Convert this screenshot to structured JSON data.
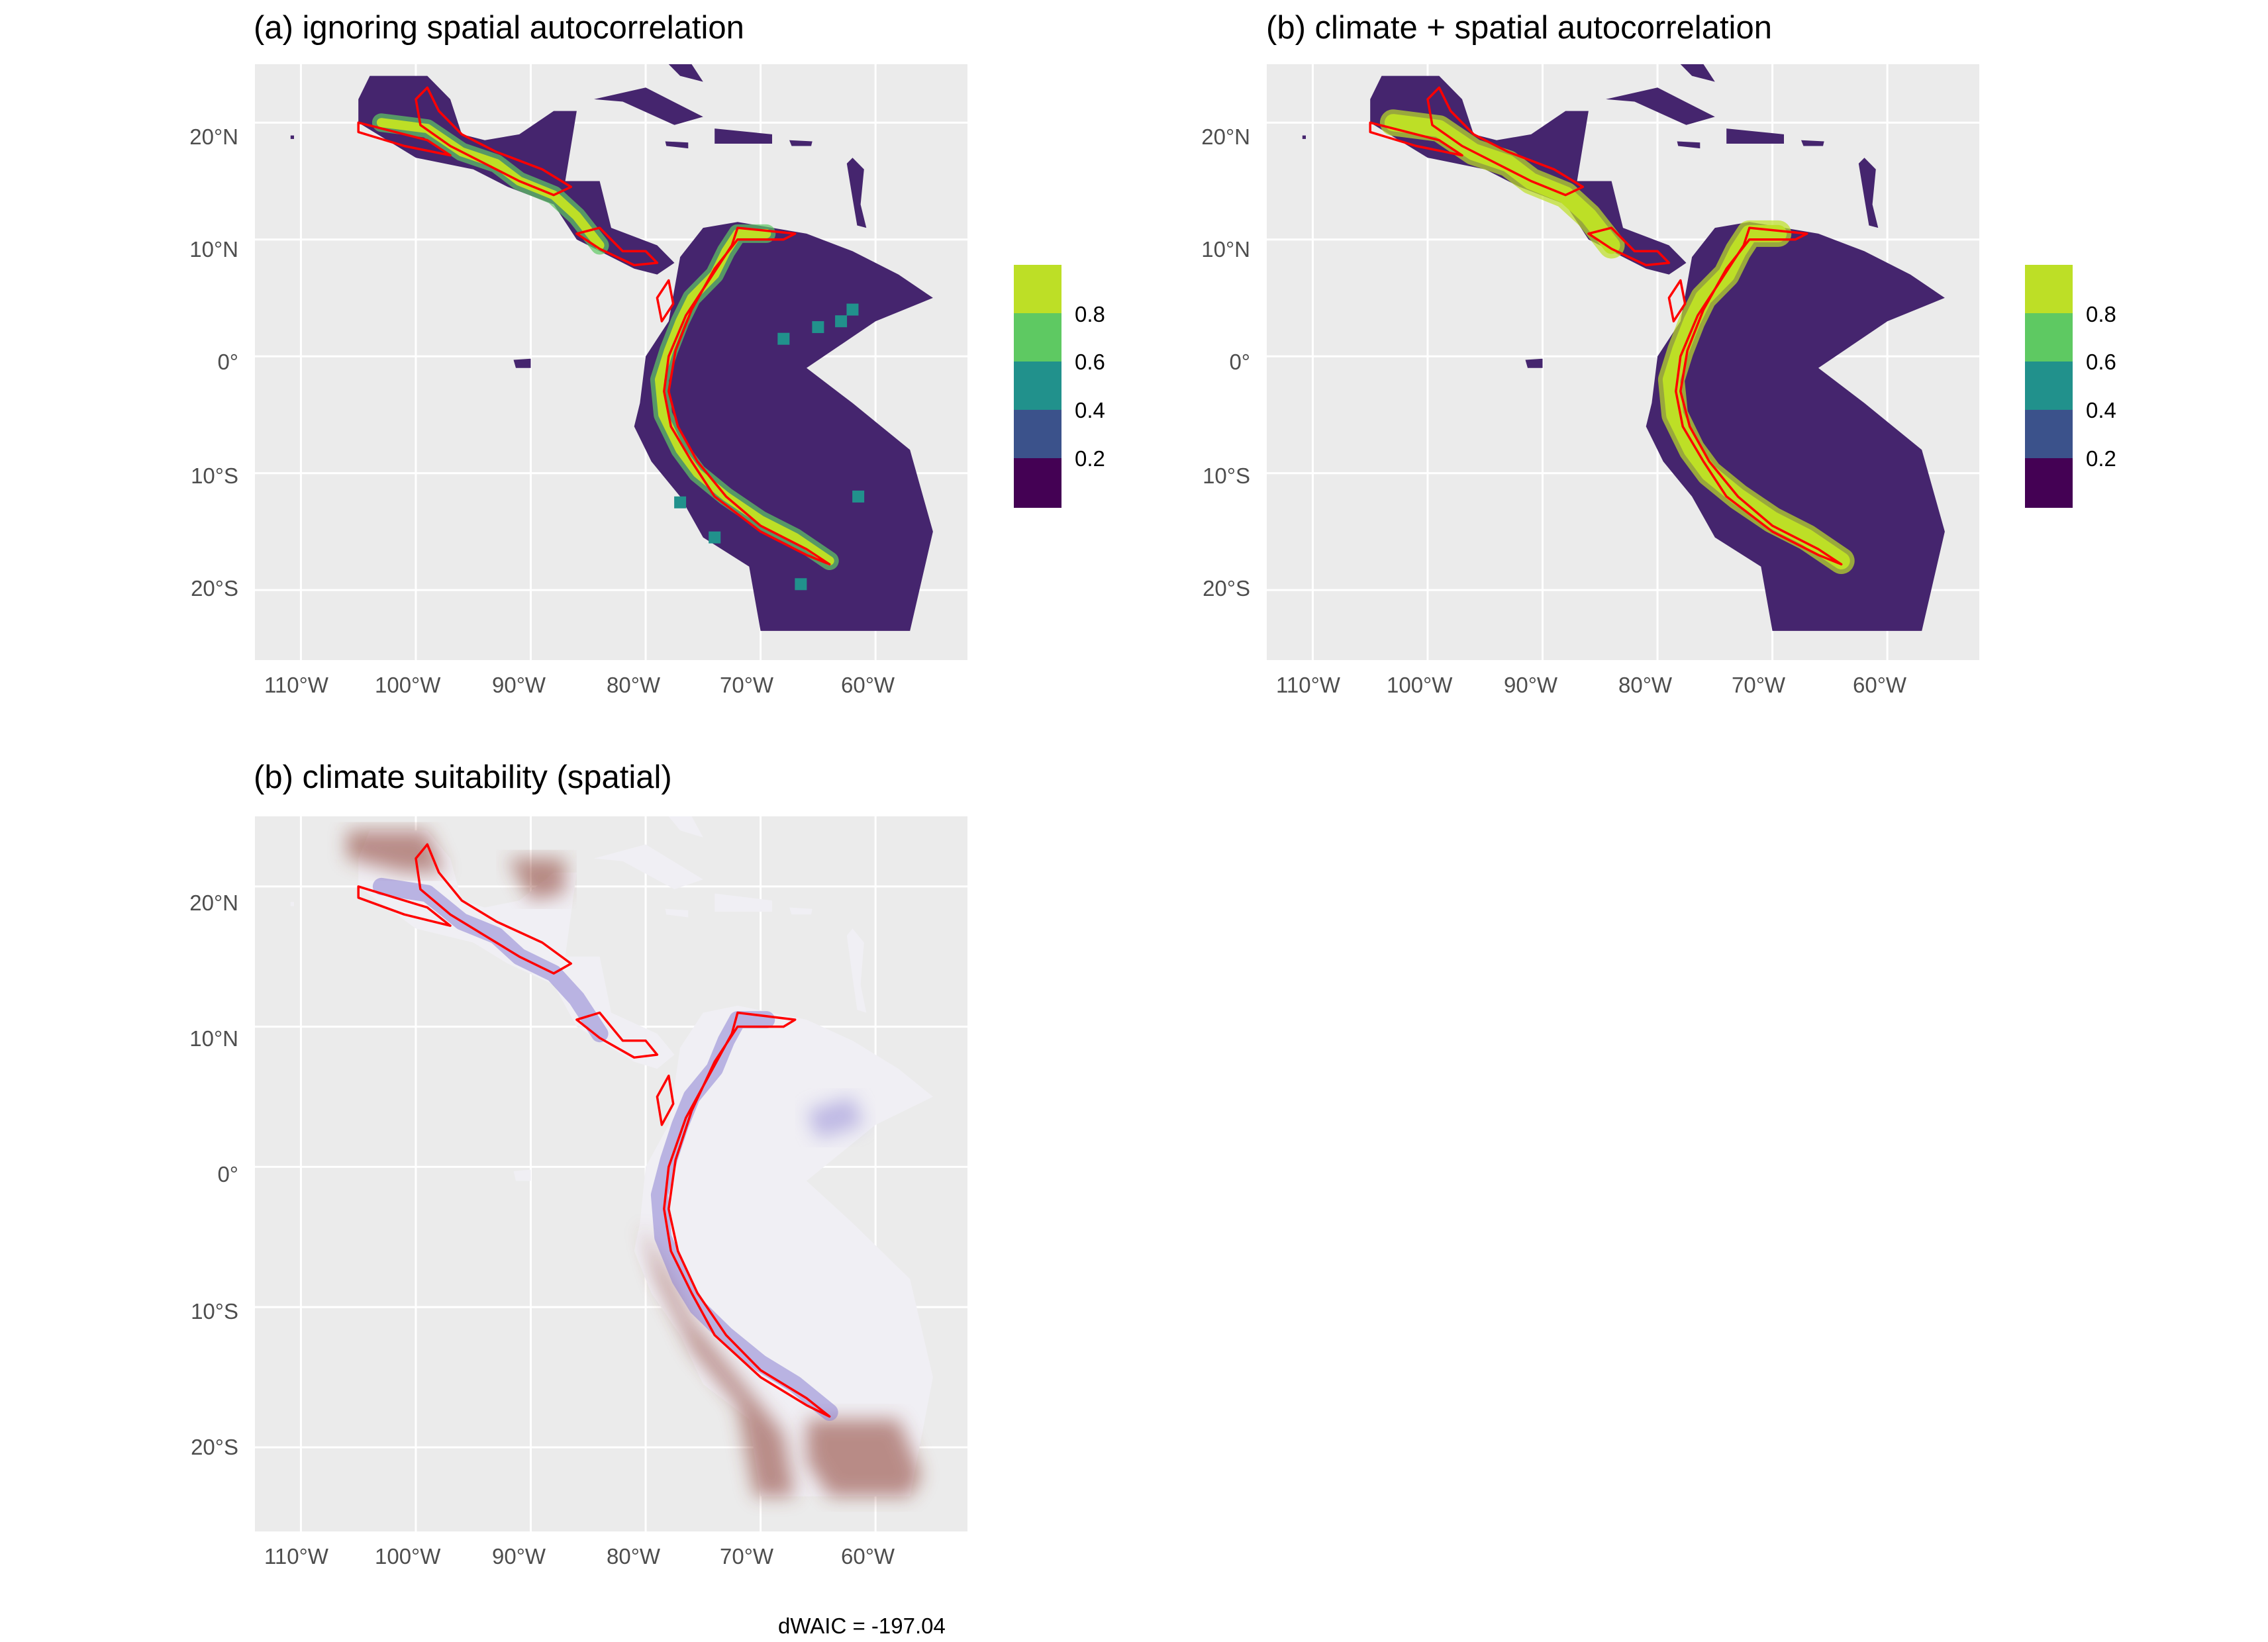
{
  "panels": [
    {
      "title": "(a) ignoring spatial autocorrelation",
      "fill": "viridis"
    },
    {
      "title": "(b) climate + spatial autocorrelation",
      "fill": "viridis"
    },
    {
      "title": "(b) climate suitability (spatial)",
      "fill": "diverging"
    }
  ],
  "axes": {
    "x_ticks": [
      "110°W",
      "100°W",
      "90°W",
      "80°W",
      "70°W",
      "60°W"
    ],
    "y_ticks": [
      "20°N",
      "10°N",
      "0°",
      "10°S",
      "20°S"
    ],
    "x_lon": [
      -110,
      -100,
      -90,
      -80,
      -70,
      -60
    ],
    "y_lat": [
      20,
      10,
      0,
      -10,
      -20
    ],
    "xlim": [
      -114,
      -52
    ],
    "ylim": [
      -26,
      25
    ]
  },
  "legend": {
    "labels": [
      "0.8",
      "0.6",
      "0.4",
      "0.2"
    ],
    "bins": [
      {
        "color": "#bddf26"
      },
      {
        "color": "#5ec962"
      },
      {
        "color": "#21918c"
      },
      {
        "color": "#3b528b"
      },
      {
        "color": "#440154"
      }
    ]
  },
  "colors": {
    "panel_bg": "#ebebeb",
    "grid": "#ffffff",
    "land_low": "#45256e",
    "range_outline": "#ff0000",
    "high": "#bddf26",
    "suit_neg": "#8b3a2f",
    "suit_pos": "#8c82d4"
  },
  "caption": "dWAIC = -197.04"
}
